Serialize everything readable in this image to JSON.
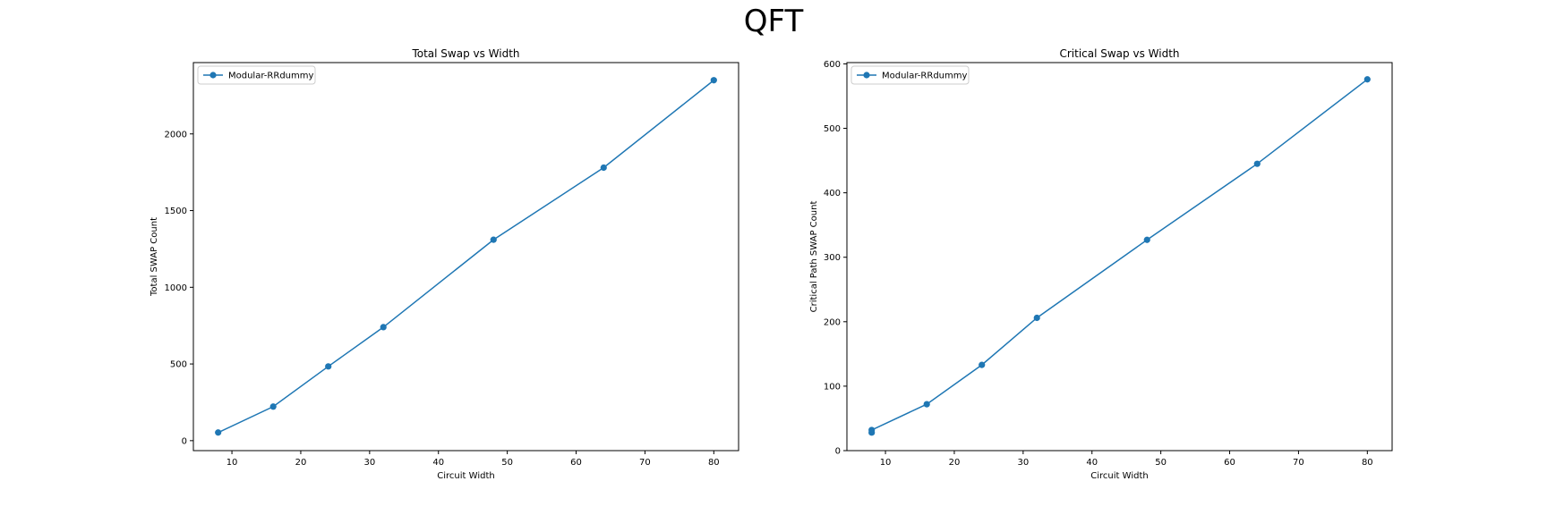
{
  "figure": {
    "suptitle": "QFT"
  },
  "colors": {
    "series": "#1f77b4",
    "axis": "#000000"
  },
  "chart_data": [
    {
      "type": "line",
      "title": "Total Swap vs Width",
      "xlabel": "Circuit Width",
      "ylabel": "Total SWAP Count",
      "xlim": [
        4.4,
        83.6
      ],
      "ylim": [
        -65,
        2465
      ],
      "xticks": [
        10,
        20,
        30,
        40,
        50,
        60,
        70,
        80
      ],
      "yticks": [
        0,
        500,
        1000,
        1500,
        2000
      ],
      "grid": false,
      "legend": "upper left",
      "series": [
        {
          "name": "Modular-RRdummy",
          "marker": "circle",
          "x": [
            8,
            16,
            24,
            32,
            48,
            64,
            80
          ],
          "y": [
            53,
            222,
            484,
            740,
            1310,
            1780,
            2350
          ]
        }
      ]
    },
    {
      "type": "line",
      "title": "Critical Swap vs Width",
      "xlabel": "Circuit Width",
      "ylabel": "Critical Path SWAP Count",
      "xlim": [
        4.4,
        83.6
      ],
      "ylim": [
        0,
        602
      ],
      "xticks": [
        10,
        20,
        30,
        40,
        50,
        60,
        70,
        80
      ],
      "yticks": [
        0,
        100,
        200,
        300,
        400,
        500,
        600
      ],
      "grid": false,
      "legend": "upper left",
      "series": [
        {
          "name": "Modular-RRdummy",
          "marker": "circle",
          "x": [
            8,
            8,
            16,
            24,
            32,
            48,
            64,
            80
          ],
          "y": [
            28,
            32,
            72,
            133,
            206,
            327,
            445,
            576
          ]
        }
      ]
    }
  ]
}
